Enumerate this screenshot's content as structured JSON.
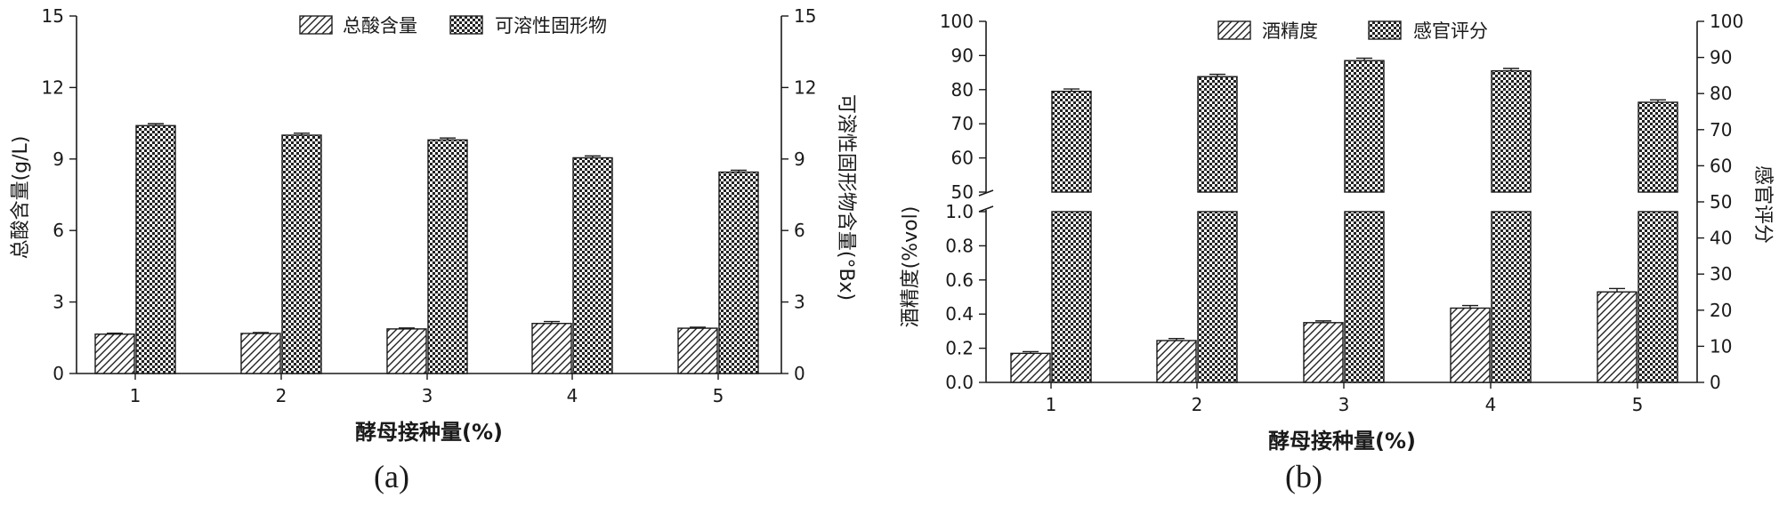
{
  "chart_data": [
    {
      "type": "bar",
      "panel_label": "(a)",
      "categories": [
        "1",
        "2",
        "3",
        "4",
        "5"
      ],
      "xlabel": "酵母接种量(%)",
      "ylabel_left": "总酸含量(g/L)",
      "ylabel_right": "可溶性固形物含量(°Bx)",
      "ylim_left": [
        0,
        15
      ],
      "ylim_right": [
        0,
        15
      ],
      "yticks_left": [
        "0",
        "3",
        "6",
        "9",
        "12",
        "15"
      ],
      "yticks_right": [
        "0",
        "3",
        "6",
        "9",
        "12",
        "15"
      ],
      "legend_position": "top-center",
      "grid": false,
      "series": [
        {
          "name": "总酸含量",
          "axis": "left",
          "pattern": "hatch",
          "values": [
            1.65,
            1.68,
            1.87,
            2.1,
            1.9
          ],
          "errors": [
            0.04,
            0.04,
            0.04,
            0.08,
            0.04
          ]
        },
        {
          "name": "可溶性固形物",
          "axis": "right",
          "pattern": "checker",
          "values": [
            10.4,
            10.0,
            9.8,
            9.05,
            8.45
          ],
          "errors": [
            0.08,
            0.08,
            0.08,
            0.08,
            0.08
          ]
        }
      ]
    },
    {
      "type": "bar",
      "panel_label": "(b)",
      "categories": [
        "1",
        "2",
        "3",
        "4",
        "5"
      ],
      "xlabel": "酵母接种量(%)",
      "ylabel_left": "酒精度(%vol)",
      "ylabel_right": "感官评分",
      "left_axis_break": {
        "lower_range": [
          0,
          1.0
        ],
        "upper_range": [
          50,
          100
        ]
      },
      "ylim_right": [
        0,
        100
      ],
      "yticks_left_lower": [
        "0.0",
        "0.2",
        "0.4",
        "0.6",
        "0.8",
        "1.0"
      ],
      "yticks_left_upper": [
        "50",
        "60",
        "70",
        "80",
        "90",
        "100"
      ],
      "yticks_right": [
        "0",
        "10",
        "20",
        "30",
        "40",
        "50",
        "60",
        "70",
        "80",
        "90",
        "100"
      ],
      "legend_position": "top-center",
      "grid": false,
      "series": [
        {
          "name": "酒精度",
          "axis": "left",
          "pattern": "hatch",
          "values": [
            0.17,
            0.245,
            0.35,
            0.435,
            0.53
          ],
          "errors": [
            0.01,
            0.012,
            0.01,
            0.015,
            0.02
          ]
        },
        {
          "name": "感官评分",
          "axis": "left-upper",
          "pattern": "checker",
          "values": [
            79.5,
            83.8,
            88.5,
            85.5,
            76.3
          ],
          "errors": [
            0.7,
            0.7,
            0.7,
            0.7,
            0.7
          ]
        }
      ]
    }
  ]
}
